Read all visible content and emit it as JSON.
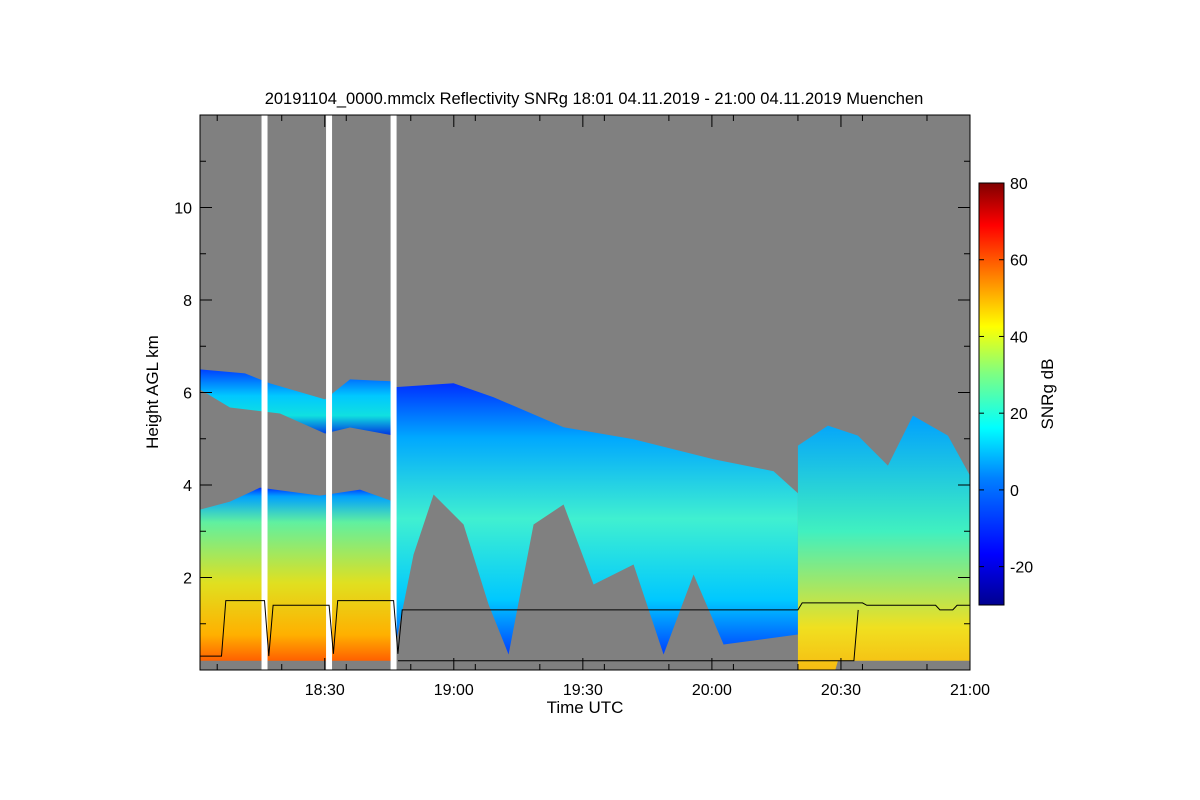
{
  "chart_data": {
    "type": "heatmap",
    "title": "20191104_0000.mmclx Reflectivity SNRg   18:01 04.11.2019 - 21:00 04.11.2019 Muenchen",
    "xlabel": "Time UTC",
    "ylabel": "Height AGL km",
    "xlim": [
      "18:01",
      "21:00"
    ],
    "ylim": [
      0,
      12
    ],
    "x_ticks": [
      "18:30",
      "19:00",
      "19:30",
      "20:00",
      "20:30",
      "21:00"
    ],
    "y_ticks": [
      2,
      4,
      6,
      8,
      10
    ],
    "colorbar": {
      "label": "SNRg dB",
      "range": [
        -30,
        80
      ],
      "ticks": [
        -20,
        0,
        20,
        40,
        60,
        80
      ]
    },
    "background_color": "#808080",
    "data_gaps_utc": [
      "18:16",
      "18:31",
      "18:46"
    ],
    "cloud_regions": [
      {
        "kind": "low cloud",
        "from": "18:01",
        "to": "18:46",
        "base_km": 0.2,
        "top_km": 3.9,
        "snr_db": [
          10,
          50
        ]
      },
      {
        "kind": "upper layer",
        "from": "18:01",
        "to": "18:46",
        "base_km": 5.2,
        "top_km": 6.5,
        "snr_db": [
          -10,
          20
        ]
      },
      {
        "kind": "mid cloud",
        "from": "18:46",
        "to": "20:20",
        "base_km": 1.2,
        "top_km": 6.2,
        "snr_db": [
          -20,
          30
        ]
      },
      {
        "kind": "precipitation",
        "from": "20:20",
        "to": "21:00",
        "base_km": 0.2,
        "top_km": 5.5,
        "snr_db": [
          20,
          60
        ]
      }
    ],
    "cloud_base_line": {
      "color": "#000000",
      "points": [
        [
          "18:01",
          0.3
        ],
        [
          "18:06",
          0.3
        ],
        [
          "18:07",
          1.5
        ],
        [
          "18:16",
          1.5
        ],
        [
          "18:17",
          0.3
        ],
        [
          "18:18",
          1.4
        ],
        [
          "18:31",
          1.4
        ],
        [
          "18:32",
          0.35
        ],
        [
          "18:33",
          1.5
        ],
        [
          "18:46",
          1.5
        ],
        [
          "18:47",
          0.35
        ],
        [
          "18:48",
          1.3
        ],
        [
          "20:20",
          1.3
        ],
        [
          "20:21",
          1.45
        ],
        [
          "20:35",
          1.45
        ],
        [
          "20:36",
          1.4
        ],
        [
          "20:52",
          1.4
        ],
        [
          "20:53",
          1.3
        ],
        [
          "20:56",
          1.3
        ],
        [
          "20:57",
          1.4
        ],
        [
          "21:00",
          1.4
        ]
      ]
    },
    "secondary_line": {
      "color": "#000000",
      "points": [
        [
          "18:47",
          0.2
        ],
        [
          "20:33",
          0.2
        ],
        [
          "20:34",
          1.3
        ]
      ]
    }
  }
}
